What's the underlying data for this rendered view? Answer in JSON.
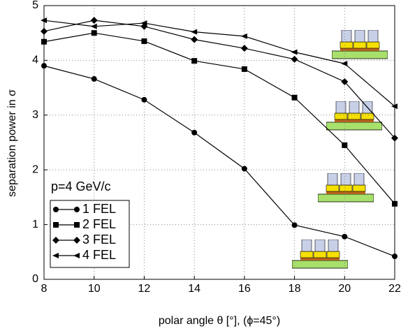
{
  "chart_data": {
    "type": "line",
    "xlabel": "polar angle θ [°], (ϕ=45°)",
    "ylabel": "separation power in σ",
    "annotation": "p=4 GeV/c",
    "x": [
      8,
      10,
      12,
      14,
      16,
      18,
      20,
      22
    ],
    "xlim": [
      8,
      22
    ],
    "xticks": [
      8,
      10,
      12,
      14,
      16,
      18,
      20,
      22
    ],
    "ylim": [
      0,
      5
    ],
    "yticks": [
      0,
      1,
      2,
      3,
      4,
      5
    ],
    "grid": true,
    "legend": "lower left",
    "series": [
      {
        "name": "1 FEL",
        "color": "#000000",
        "marker": "circle",
        "values": [
          3.9,
          3.66,
          3.28,
          2.68,
          2.02,
          0.99,
          0.78,
          0.42
        ]
      },
      {
        "name": "2 FEL",
        "color": "#000000",
        "marker": "square",
        "values": [
          4.34,
          4.5,
          4.35,
          3.99,
          3.84,
          3.32,
          2.45,
          1.38
        ]
      },
      {
        "name": "3 FEL",
        "color": "#000000",
        "marker": "diamond",
        "values": [
          4.53,
          4.73,
          4.62,
          4.38,
          4.22,
          4.02,
          3.61,
          2.58
        ]
      },
      {
        "name": "4 FEL",
        "color": "#000000",
        "marker": "triangle-left",
        "values": [
          4.73,
          4.62,
          4.68,
          4.52,
          4.44,
          4.15,
          3.94,
          3.16
        ]
      }
    ]
  }
}
